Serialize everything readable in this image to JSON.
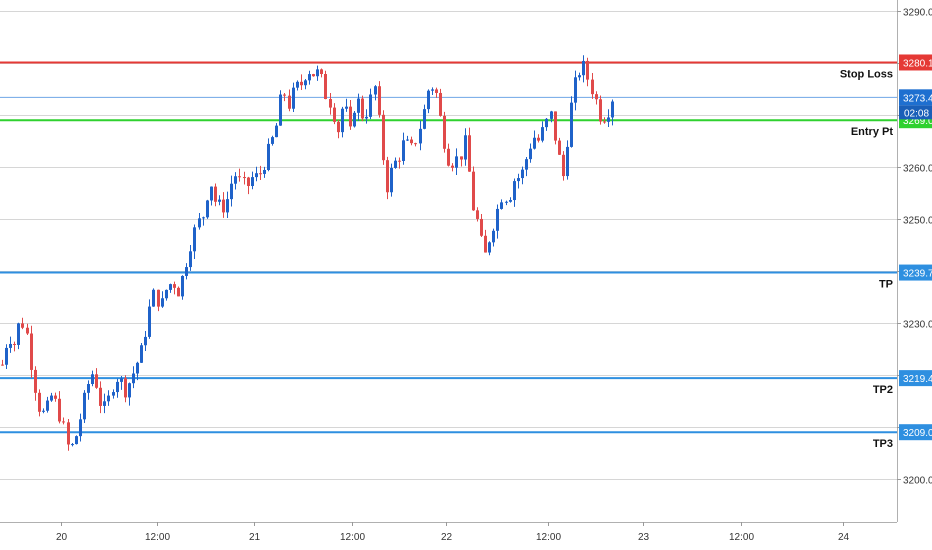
{
  "chart_data": {
    "type": "candlestick",
    "colors": {
      "up": "#1f62c9",
      "down": "#e04a4a",
      "grid": "#d6d6d6",
      "stop_loss": "#e53935",
      "entry": "#2fd12f",
      "take_profit": "#2e8fe0",
      "last_price": "#1e6fd0"
    },
    "y_axis": {
      "range": [
        3193,
        3292
      ],
      "ticks": [
        "3200.0",
        "3210.0",
        "3220.0",
        "3230.0",
        "3240.0",
        "3250.0",
        "3260.0",
        "3270.0",
        "3280.0",
        "3290.0"
      ],
      "tick_values": [
        3200,
        3210,
        3220,
        3230,
        3240,
        3250,
        3260,
        3270,
        3280,
        3290
      ]
    },
    "x_axis": {
      "ticks": [
        "20",
        "12:00",
        "21",
        "12:00",
        "22",
        "12:00",
        "23",
        "12:00",
        "24"
      ]
    },
    "levels": [
      {
        "label": "Stop Loss",
        "value": 3280.1,
        "badge": "3280.1",
        "kind": "stop_loss"
      },
      {
        "label": "Entry Pt",
        "value": 3269.0,
        "badge": "3269.0",
        "kind": "entry"
      },
      {
        "label": "TP",
        "value": 3239.7,
        "badge": "3239.7",
        "kind": "take_profit"
      },
      {
        "label": "TP2",
        "value": 3219.4,
        "badge": "3219.4",
        "kind": "take_profit"
      },
      {
        "label": "TP3",
        "value": 3209.0,
        "badge": "3209.0",
        "kind": "take_profit"
      }
    ],
    "last_price": {
      "value": 3273.4,
      "badge": "3273.4",
      "countdown": "02:08"
    },
    "price_path": [
      3222,
      3228,
      3226,
      3231,
      3228,
      3220,
      3214,
      3212,
      3216,
      3214,
      3210,
      3205,
      3208,
      3213,
      3218,
      3221,
      3215,
      3213,
      3218,
      3220,
      3217,
      3219,
      3222,
      3225,
      3232,
      3236,
      3233,
      3237,
      3238,
      3236,
      3241,
      3246,
      3249,
      3251,
      3258,
      3253,
      3252,
      3254,
      3259,
      3257,
      3256,
      3258,
      3258,
      3261,
      3264,
      3268,
      3275,
      3272,
      3275,
      3276,
      3279,
      3278,
      3278,
      3274,
      3272,
      3267,
      3273,
      3266,
      3274,
      3270,
      3271,
      3276,
      3266,
      3256,
      3260,
      3262,
      3265,
      3263,
      3266,
      3270,
      3276,
      3275,
      3268,
      3262,
      3261,
      3262,
      3265,
      3253,
      3249,
      3242,
      3247,
      3251,
      3255,
      3254,
      3258,
      3258,
      3262,
      3266,
      3265,
      3268,
      3270,
      3263,
      3258,
      3270,
      3276,
      3280,
      3277,
      3274,
      3270,
      3270,
      3273.4
    ]
  }
}
